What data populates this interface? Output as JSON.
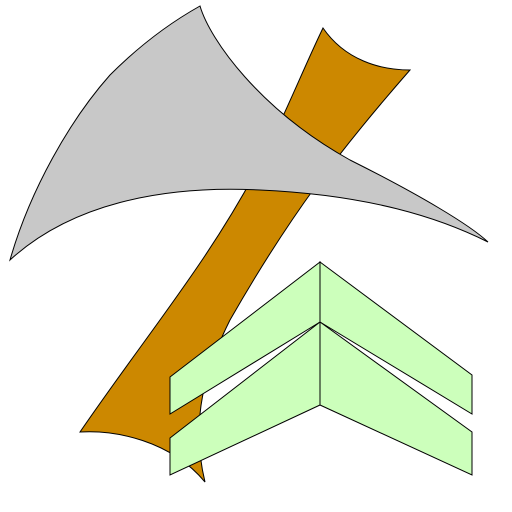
{
  "clipart": {
    "subject": "axe-icon",
    "colors": {
      "handle": "#CC8800",
      "blade": "#C8C8C8",
      "chevrons": "#CCFFBB",
      "stroke": "#000000",
      "background": "#FFFFFF"
    },
    "chevron_count": 2
  }
}
